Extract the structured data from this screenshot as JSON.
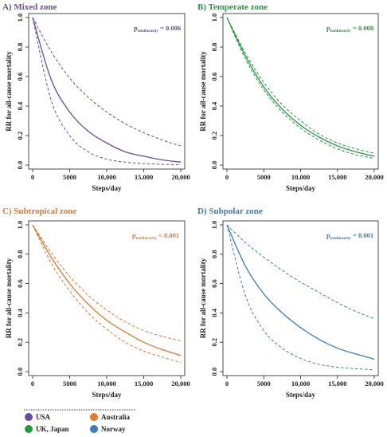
{
  "chart_data": [
    {
      "type": "line",
      "title": "A) Mixed zone",
      "color": "#6b4aa0",
      "xlabel": "Steps/day",
      "ylabel": "RR for all-cause mortality",
      "xlim": [
        0,
        20000
      ],
      "ylim": [
        0,
        1.0
      ],
      "x_ticks": [
        "0",
        "5000",
        "10,000",
        "15,000",
        "20,000"
      ],
      "y_ticks": [
        "0.0",
        "0.2",
        "0.4",
        "0.6",
        "0.8",
        "1.0"
      ],
      "p_main": "p",
      "p_sub": "nonlinearity",
      "p_rest": " = 0.006",
      "x": [
        0,
        2500,
        5000,
        7500,
        10000,
        12500,
        15000,
        17500,
        20000
      ],
      "series": [
        {
          "role": "estimate",
          "values": [
            1.0,
            0.58,
            0.36,
            0.23,
            0.15,
            0.09,
            0.06,
            0.035,
            0.02
          ]
        },
        {
          "role": "upper",
          "values": [
            1.0,
            0.77,
            0.59,
            0.46,
            0.36,
            0.28,
            0.22,
            0.17,
            0.13
          ]
        },
        {
          "role": "lower",
          "values": [
            1.0,
            0.44,
            0.2,
            0.09,
            0.04,
            0.02,
            0.01,
            0.005,
            0.003
          ]
        }
      ]
    },
    {
      "type": "line",
      "title": "B) Temperate zone",
      "color": "#1f9a3c",
      "xlabel": "Steps/day",
      "ylabel": "RR for all-cause mortality",
      "xlim": [
        0,
        20000
      ],
      "ylim": [
        0,
        1.0
      ],
      "x_ticks": [
        "0",
        "5000",
        "10,000",
        "15,000",
        "20,000"
      ],
      "y_ticks": [
        "0.0",
        "0.2",
        "0.4",
        "0.6",
        "0.8",
        "1.0"
      ],
      "p_main": "p",
      "p_sub": "nonlinearity",
      "p_rest": " = 0.008",
      "x": [
        0,
        2500,
        5000,
        7500,
        10000,
        12500,
        15000,
        17500,
        20000
      ],
      "series": [
        {
          "role": "estimate",
          "values": [
            1.0,
            0.74,
            0.53,
            0.38,
            0.27,
            0.19,
            0.13,
            0.09,
            0.06
          ]
        },
        {
          "role": "upper",
          "values": [
            1.0,
            0.76,
            0.56,
            0.41,
            0.3,
            0.21,
            0.15,
            0.11,
            0.08
          ]
        },
        {
          "role": "lower",
          "values": [
            1.0,
            0.72,
            0.51,
            0.36,
            0.25,
            0.17,
            0.11,
            0.07,
            0.045
          ]
        }
      ]
    },
    {
      "type": "line",
      "title": "C) Subtropical zone",
      "color": "#e8762c",
      "xlabel": "Steps/day",
      "ylabel": "RR for all-cause mortality",
      "xlim": [
        0,
        20000
      ],
      "ylim": [
        0,
        1.0
      ],
      "x_ticks": [
        "0",
        "5000",
        "10,000",
        "15,000",
        "20,000"
      ],
      "y_ticks": [
        "0.0",
        "0.2",
        "0.4",
        "0.6",
        "0.8",
        "1.0"
      ],
      "p_main": "p",
      "p_sub": "nonlinearity",
      "p_rest": " < 0.001",
      "x": [
        0,
        2500,
        5000,
        7500,
        10000,
        12500,
        15000,
        17500,
        20000
      ],
      "series": [
        {
          "role": "estimate",
          "values": [
            1.0,
            0.78,
            0.6,
            0.46,
            0.35,
            0.27,
            0.2,
            0.15,
            0.11
          ]
        },
        {
          "role": "upper",
          "values": [
            1.0,
            0.81,
            0.65,
            0.52,
            0.42,
            0.34,
            0.28,
            0.24,
            0.21
          ]
        },
        {
          "role": "lower",
          "values": [
            1.0,
            0.74,
            0.55,
            0.4,
            0.29,
            0.2,
            0.14,
            0.1,
            0.06
          ]
        }
      ]
    },
    {
      "type": "line",
      "title": "D) Subpolar zone",
      "color": "#3b7bbf",
      "xlabel": "Steps/day",
      "ylabel": "RR for all-cause mortality",
      "xlim": [
        0,
        20000
      ],
      "ylim": [
        0,
        1.0
      ],
      "x_ticks": [
        "0",
        "5000",
        "10,000",
        "15,000",
        "20,000"
      ],
      "y_ticks": [
        "0.0",
        "0.2",
        "0.4",
        "0.6",
        "0.8",
        "1.0"
      ],
      "p_main": "p",
      "p_sub": "nonlinearity",
      "p_rest": " = 0.001",
      "x": [
        0,
        2500,
        5000,
        7500,
        10000,
        12500,
        15000,
        17500,
        20000
      ],
      "series": [
        {
          "role": "estimate",
          "values": [
            1.0,
            0.72,
            0.53,
            0.4,
            0.3,
            0.22,
            0.16,
            0.12,
            0.085
          ]
        },
        {
          "role": "upper",
          "values": [
            1.0,
            0.88,
            0.78,
            0.69,
            0.61,
            0.54,
            0.47,
            0.41,
            0.36
          ]
        },
        {
          "role": "lower",
          "values": [
            1.0,
            0.52,
            0.28,
            0.16,
            0.09,
            0.05,
            0.03,
            0.02,
            0.012
          ]
        }
      ]
    }
  ],
  "legend": {
    "items": [
      {
        "label": "USA",
        "color": "#6b4aa0"
      },
      {
        "label": "Australia",
        "color": "#e8762c"
      },
      {
        "label": "UK, Japan",
        "color": "#1f9a3c"
      },
      {
        "label": "Norway",
        "color": "#3b7bbf"
      }
    ]
  }
}
